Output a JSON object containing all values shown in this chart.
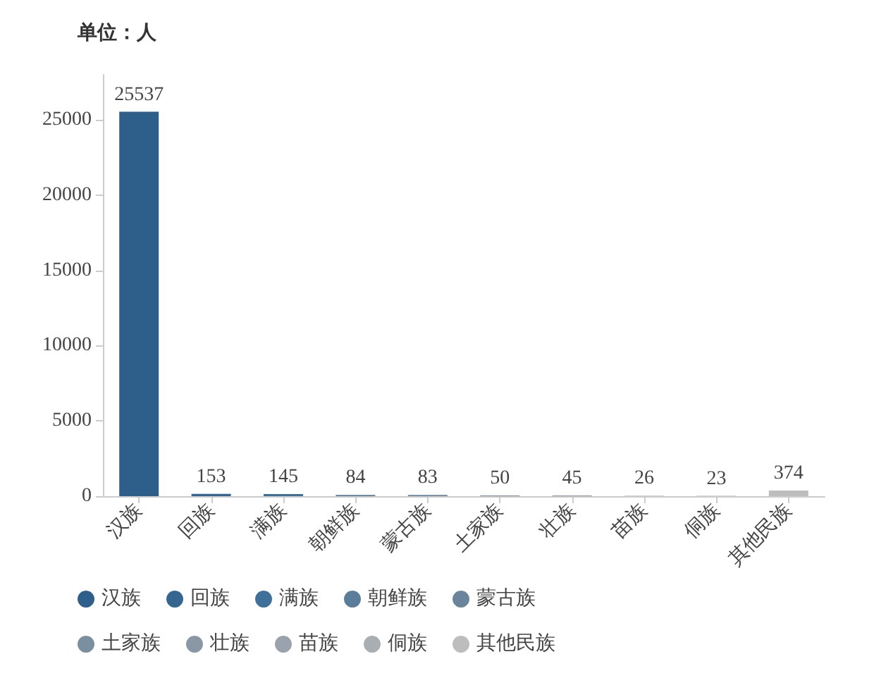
{
  "chart_data": {
    "type": "bar",
    "ylabel": "单位：人",
    "categories": [
      "汉族",
      "回族",
      "满族",
      "朝鲜族",
      "蒙古族",
      "土家族",
      "壮族",
      "苗族",
      "侗族",
      "其他民族"
    ],
    "series": [
      {
        "name": "汉族",
        "color": "#2e5f8a",
        "values": [
          25537,
          null,
          null,
          null,
          null,
          null,
          null,
          null,
          null,
          null
        ]
      },
      {
        "name": "回族",
        "color": "#34668f",
        "values": [
          null,
          153,
          null,
          null,
          null,
          null,
          null,
          null,
          null,
          null
        ]
      },
      {
        "name": "满族",
        "color": "#3f7099",
        "values": [
          null,
          null,
          145,
          null,
          null,
          null,
          null,
          null,
          null,
          null
        ]
      },
      {
        "name": "朝鲜族",
        "color": "#5a7d99",
        "values": [
          null,
          null,
          null,
          84,
          null,
          null,
          null,
          null,
          null,
          null
        ]
      },
      {
        "name": "蒙古族",
        "color": "#6a849b",
        "values": [
          null,
          null,
          null,
          null,
          83,
          null,
          null,
          null,
          null,
          null
        ]
      },
      {
        "name": "土家族",
        "color": "#7a8fa0",
        "values": [
          null,
          null,
          null,
          null,
          null,
          50,
          null,
          null,
          null,
          null
        ]
      },
      {
        "name": "壮族",
        "color": "#8a98a6",
        "values": [
          null,
          null,
          null,
          null,
          null,
          null,
          45,
          null,
          null,
          null
        ]
      },
      {
        "name": "苗族",
        "color": "#9aa3ad",
        "values": [
          null,
          null,
          null,
          null,
          null,
          null,
          null,
          26,
          null,
          null
        ]
      },
      {
        "name": "侗族",
        "color": "#a9aeb3",
        "values": [
          null,
          null,
          null,
          null,
          null,
          null,
          null,
          null,
          23,
          null
        ]
      },
      {
        "name": "其他民族",
        "color": "#bdbdbd",
        "values": [
          null,
          null,
          null,
          null,
          null,
          null,
          null,
          null,
          null,
          374
        ]
      }
    ],
    "stacked": true,
    "ylim": [
      0,
      28000
    ],
    "yticks": [
      0,
      5000,
      10000,
      15000,
      20000,
      25000
    ],
    "data_labels": true,
    "grid": false,
    "legend": "bottom left"
  }
}
